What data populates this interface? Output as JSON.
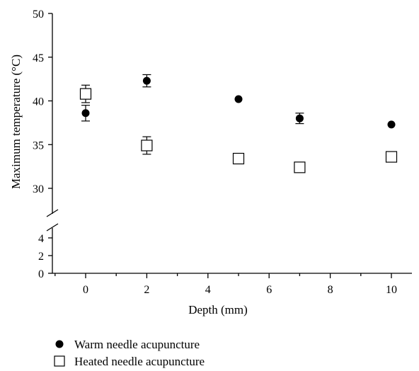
{
  "chart_data": {
    "type": "scatter",
    "xlabel": "Depth (mm)",
    "ylabel": "Maximum temperature (°C)",
    "xlim": [
      -1,
      11
    ],
    "x_ticks": [
      0,
      2,
      4,
      6,
      8,
      10
    ],
    "x_tick_labels": [
      "0",
      "2",
      "4",
      "6",
      "8",
      "10"
    ],
    "y_axis_break": true,
    "y_lower": {
      "range": [
        0,
        4.5
      ],
      "ticks": [
        0,
        2,
        4
      ],
      "tick_labels": [
        "0",
        "2",
        "4"
      ]
    },
    "y_upper": {
      "range": [
        27,
        50
      ],
      "ticks": [
        30,
        35,
        40,
        45,
        50
      ],
      "tick_labels": [
        "30",
        "35",
        "40",
        "45",
        "50"
      ]
    },
    "grid": false,
    "legend_position": "bottom-left",
    "series": [
      {
        "name": "Warm needle acupuncture",
        "marker": "filled-circle",
        "color": "#000000",
        "x": [
          0,
          2,
          5,
          7,
          10
        ],
        "y": [
          38.6,
          42.3,
          40.2,
          38.0,
          37.3
        ],
        "error": [
          0.9,
          0.7,
          0,
          0.6,
          0
        ]
      },
      {
        "name": "Heated needle acupuncture",
        "marker": "open-square",
        "color": "#000000",
        "x": [
          0,
          2,
          5,
          7,
          10
        ],
        "y": [
          40.8,
          34.9,
          33.4,
          32.4,
          33.6
        ],
        "error": [
          1.0,
          1.0,
          0,
          0,
          0
        ]
      }
    ]
  }
}
